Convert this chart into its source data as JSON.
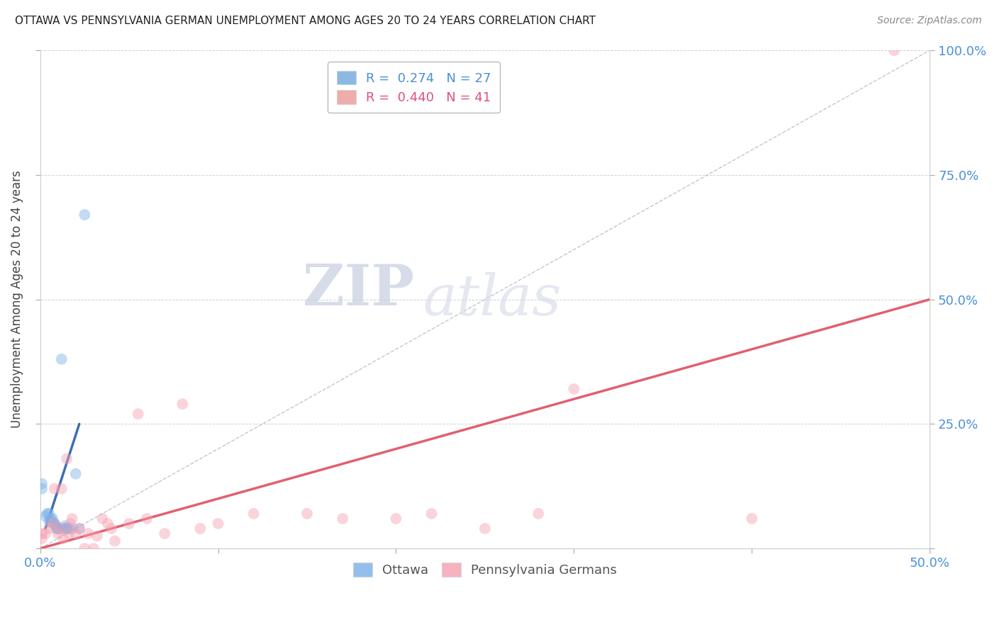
{
  "title": "OTTAWA VS PENNSYLVANIA GERMAN UNEMPLOYMENT AMONG AGES 20 TO 24 YEARS CORRELATION CHART",
  "source": "Source: ZipAtlas.com",
  "ylabel_label": "Unemployment Among Ages 20 to 24 years",
  "legend_entries": [
    {
      "label": "Ottawa",
      "R": 0.274,
      "N": 27,
      "color": "#6fa8dc"
    },
    {
      "label": "Pennsylvania Germans",
      "R": 0.44,
      "N": 41,
      "color": "#ea9999"
    }
  ],
  "watermark_part1": "ZIP",
  "watermark_part2": "atlas",
  "background_color": "#ffffff",
  "grid_color": "#cccccc",
  "ottawa_scatter_x": [
    0.001,
    0.001,
    0.003,
    0.004,
    0.005,
    0.005,
    0.006,
    0.006,
    0.007,
    0.007,
    0.008,
    0.008,
    0.009,
    0.009,
    0.01,
    0.01,
    0.01,
    0.012,
    0.013,
    0.014,
    0.015,
    0.015,
    0.016,
    0.018,
    0.02,
    0.022,
    0.025
  ],
  "ottawa_scatter_y": [
    0.12,
    0.13,
    0.065,
    0.07,
    0.055,
    0.07,
    0.055,
    0.06,
    0.05,
    0.06,
    0.05,
    0.05,
    0.04,
    0.045,
    0.04,
    0.04,
    0.04,
    0.38,
    0.04,
    0.045,
    0.04,
    0.04,
    0.04,
    0.04,
    0.15,
    0.04,
    0.67
  ],
  "ottawa_line_x": [
    0.003,
    0.022
  ],
  "ottawa_line_y": [
    0.04,
    0.25
  ],
  "ottawa_line_color": "#3d6eb5",
  "pa_scatter_x": [
    0.001,
    0.001,
    0.003,
    0.005,
    0.007,
    0.008,
    0.01,
    0.011,
    0.012,
    0.013,
    0.015,
    0.016,
    0.017,
    0.018,
    0.02,
    0.022,
    0.025,
    0.027,
    0.03,
    0.032,
    0.035,
    0.038,
    0.04,
    0.042,
    0.05,
    0.055,
    0.06,
    0.07,
    0.08,
    0.09,
    0.1,
    0.12,
    0.15,
    0.17,
    0.2,
    0.22,
    0.25,
    0.28,
    0.3,
    0.4,
    0.48
  ],
  "pa_scatter_y": [
    0.02,
    0.03,
    0.03,
    0.04,
    0.05,
    0.12,
    0.03,
    0.04,
    0.12,
    0.02,
    0.18,
    0.03,
    0.05,
    0.06,
    0.03,
    0.04,
    0.0,
    0.03,
    0.0,
    0.025,
    0.06,
    0.05,
    0.04,
    0.015,
    0.05,
    0.27,
    0.06,
    0.03,
    0.29,
    0.04,
    0.05,
    0.07,
    0.07,
    0.06,
    0.06,
    0.07,
    0.04,
    0.07,
    0.32,
    0.06,
    1.0
  ],
  "pa_line_x": [
    0.0,
    0.5
  ],
  "pa_line_y": [
    0.0,
    0.5
  ],
  "pa_line_color": "#e06070",
  "diagonal_line_x": [
    0.0,
    0.5
  ],
  "diagonal_line_y": [
    0.0,
    1.0
  ],
  "diagonal_line_color": "#b0b8cc",
  "xlim": [
    0.0,
    0.5
  ],
  "ylim": [
    0.0,
    1.0
  ],
  "scatter_size": 130,
  "scatter_alpha": 0.45,
  "ottawa_color": "#7ab0e8",
  "pa_color": "#f4a0b0"
}
